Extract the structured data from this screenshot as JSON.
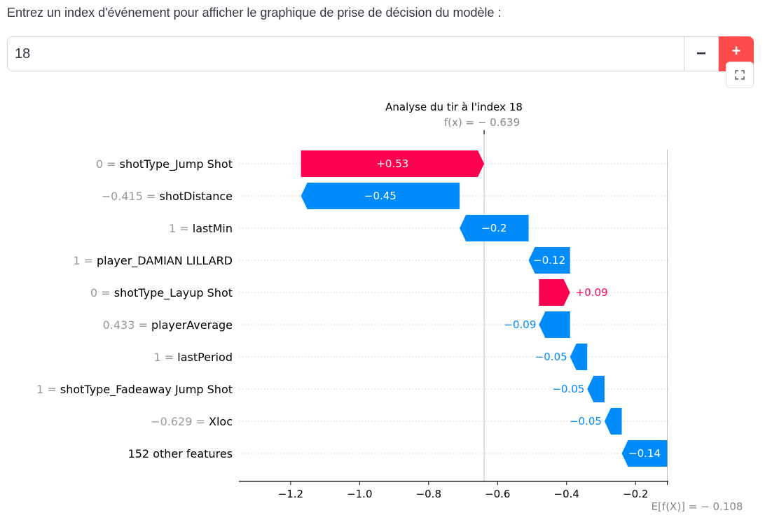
{
  "prompt": "Entrez un index d'événement pour afficher le graphique de prise de décision du modèle :",
  "event_index": {
    "value": "18",
    "minus_label": "−",
    "plus_label": "+"
  },
  "fullscreen_icon": "fullscreen-icon",
  "colors": {
    "positive": "#ff0051",
    "negative": "#008bfb",
    "accent": "#ff4b4b"
  },
  "chart_data": {
    "type": "waterfall",
    "title": "Analyse du tir à l'index 18",
    "fx_label": "f(x) = − 0.639",
    "base_label": "E[f(X)] = − 0.108",
    "fx": -0.639,
    "base": -0.108,
    "xlim": [
      -1.35,
      -0.105
    ],
    "xticks": [
      -1.2,
      -1.0,
      -0.8,
      -0.6,
      -0.4,
      -0.2
    ],
    "xtick_labels": [
      "−1.2",
      "−1.0",
      "−0.8",
      "−0.6",
      "−0.4",
      "−0.2"
    ],
    "features": [
      {
        "value": "0",
        "name": "shotType_Jump Shot",
        "start": -1.17,
        "end": -0.639,
        "label": "+0.53"
      },
      {
        "value": "−0.415",
        "name": "shotDistance",
        "start": -0.71,
        "end": -1.17,
        "label": "−0.45"
      },
      {
        "value": "1",
        "name": "lastMin",
        "start": -0.51,
        "end": -0.71,
        "label": "−0.2"
      },
      {
        "value": "1",
        "name": "player_DAMIAN LILLARD",
        "start": -0.39,
        "end": -0.51,
        "label": "−0.12"
      },
      {
        "value": "0",
        "name": "shotType_Layup Shot",
        "start": -0.48,
        "end": -0.39,
        "label": "+0.09"
      },
      {
        "value": "0.433",
        "name": "playerAverage",
        "start": -0.39,
        "end": -0.48,
        "label": "−0.09"
      },
      {
        "value": "1",
        "name": "lastPeriod",
        "start": -0.34,
        "end": -0.39,
        "label": "−0.05"
      },
      {
        "value": "1",
        "name": "shotType_Fadeaway Jump Shot",
        "start": -0.29,
        "end": -0.34,
        "label": "−0.05"
      },
      {
        "value": "−0.629",
        "name": "Xloc",
        "start": -0.24,
        "end": -0.29,
        "label": "−0.05"
      },
      {
        "value": "",
        "name": "152 other features",
        "start": -0.108,
        "end": -0.24,
        "label": "−0.14"
      }
    ]
  }
}
